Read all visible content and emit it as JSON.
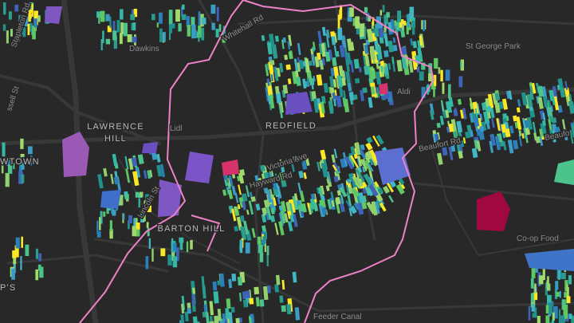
{
  "map": {
    "districts": [
      "LAWRENCE",
      "HILL",
      "REDFIELD",
      "BARTON HILL",
      "WTOWN",
      "P'S"
    ],
    "streets": [
      "Stapleton Rd",
      "ssell St",
      "Whitehall Rd",
      "Victoria Ave",
      "Hayward Rd",
      "Lincoln St",
      "Beaufort Rd",
      "Beaufo",
      "Feeder Canal"
    ],
    "places": [
      "Dawkins",
      "St George Park",
      "Aldi",
      "Lidl",
      "Co-op Food"
    ]
  }
}
